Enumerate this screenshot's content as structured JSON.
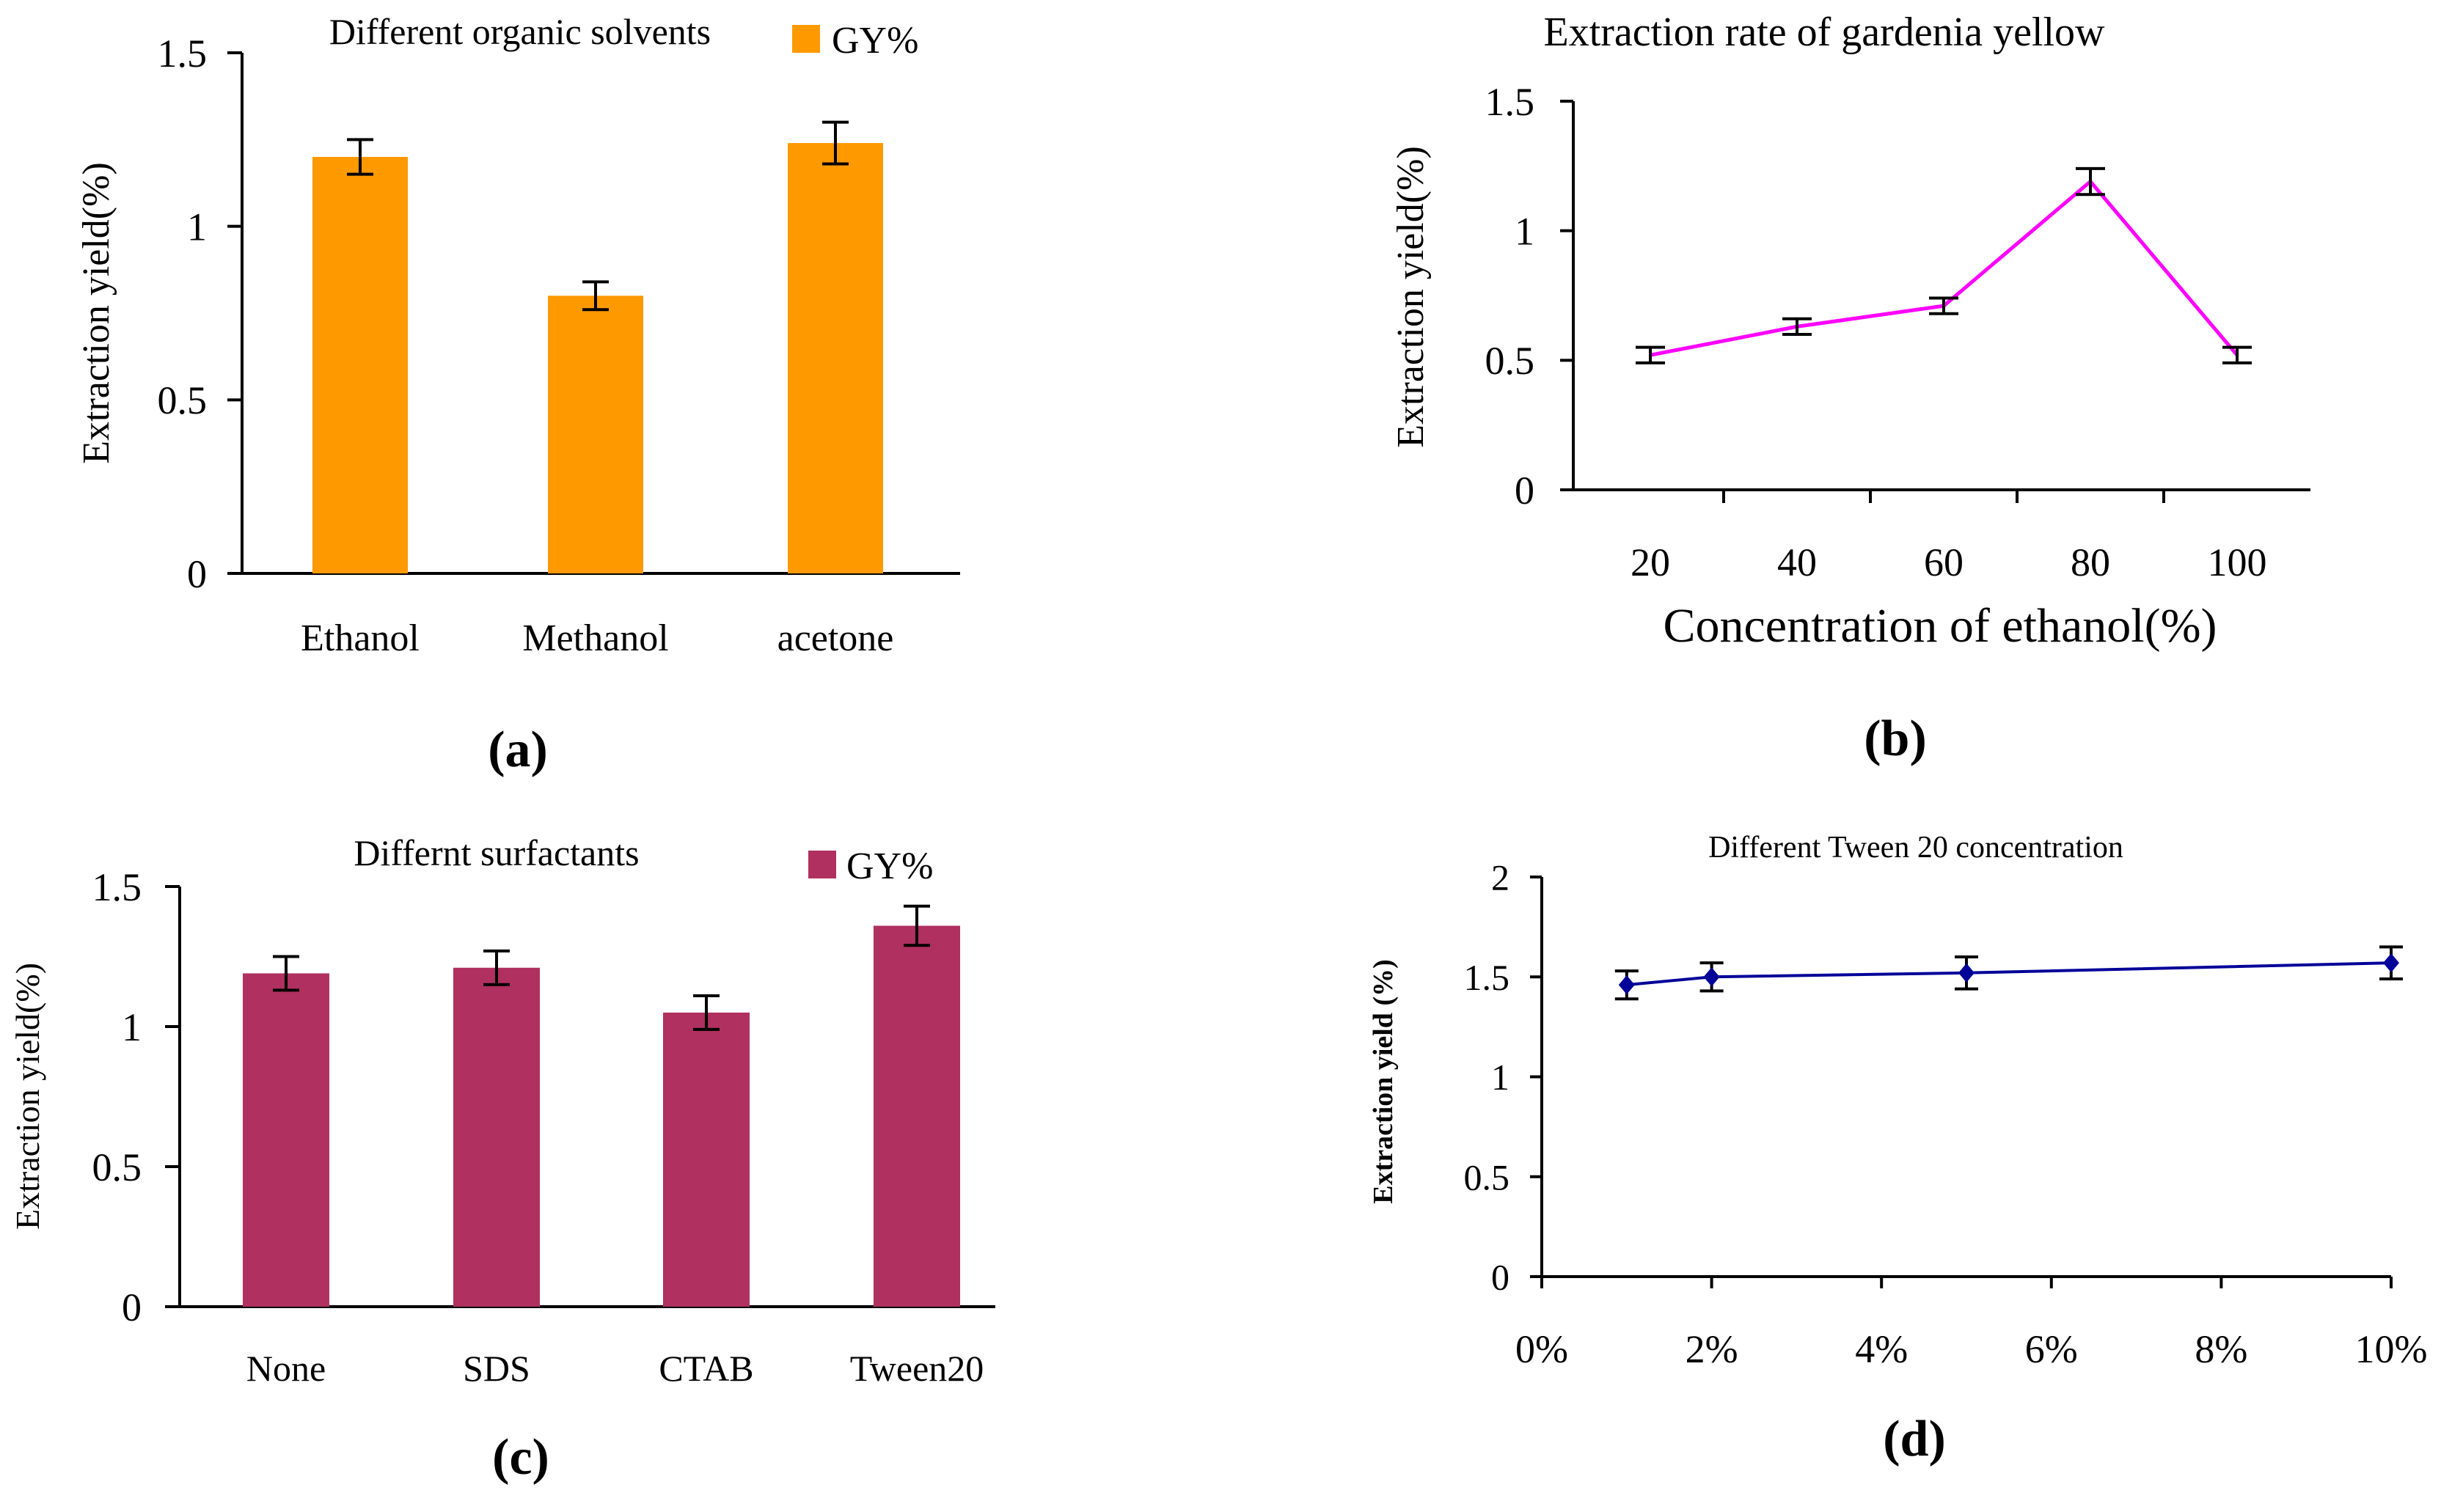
{
  "figure": {
    "panel_labels": {
      "a": "(a)",
      "b": "(b)",
      "c": "(c)",
      "d": "(d)"
    }
  },
  "chart_data": [
    {
      "id": "a",
      "type": "bar",
      "title": "Different organic solvents",
      "legend": "GY%",
      "legend_position": "top-right",
      "ylabel": "Extraction yield(%)",
      "xlabel": "",
      "categories": [
        "Ethanol",
        "Methanol",
        "acetone"
      ],
      "values": [
        1.2,
        0.8,
        1.24
      ],
      "errors": [
        0.05,
        0.04,
        0.06
      ],
      "ylim": [
        0,
        1.5
      ],
      "yticks": [
        0,
        0.5,
        1,
        1.5
      ],
      "ytick_labels": [
        "0",
        "0.5",
        "1",
        "1.5"
      ],
      "color": "#FF9900"
    },
    {
      "id": "b",
      "type": "line",
      "title": "Extraction rate of gardenia yellow",
      "xlabel": "Concentration of ethanol(%)",
      "ylabel": "Extraction yield(%)",
      "categories": [
        "20",
        "40",
        "60",
        "80",
        "100"
      ],
      "values": [
        0.52,
        0.63,
        0.71,
        1.19,
        0.52
      ],
      "errors": [
        0.03,
        0.03,
        0.03,
        0.05,
        0.03
      ],
      "ylim": [
        0,
        1.5
      ],
      "yticks": [
        0,
        0.5,
        1,
        1.5
      ],
      "ytick_labels": [
        "0",
        "0.5",
        "1",
        "1.5"
      ],
      "color": "#FF00FF"
    },
    {
      "id": "c",
      "type": "bar",
      "title": "Differnt surfactants",
      "legend": "GY%",
      "legend_position": "top-right",
      "ylabel": "Extraction yield(%)",
      "xlabel": "",
      "categories": [
        "None",
        "SDS",
        "CTAB",
        "Tween20"
      ],
      "values": [
        1.19,
        1.21,
        1.05,
        1.36
      ],
      "errors": [
        0.06,
        0.06,
        0.06,
        0.07
      ],
      "ylim": [
        0,
        1.5
      ],
      "yticks": [
        0,
        0.5,
        1,
        1.5
      ],
      "ytick_labels": [
        "0",
        "0.5",
        "1",
        "1.5"
      ],
      "color": "#B03060"
    },
    {
      "id": "d",
      "type": "line",
      "title": "Different Tween 20 concentration",
      "xlabel": "",
      "ylabel": "Extraction yield (%)",
      "x": [
        1,
        2,
        5,
        10
      ],
      "values": [
        1.46,
        1.5,
        1.52,
        1.57
      ],
      "errors": [
        0.07,
        0.07,
        0.08,
        0.08
      ],
      "xlim": [
        0,
        10
      ],
      "xticks": [
        0,
        2,
        4,
        6,
        8,
        10
      ],
      "xtick_labels": [
        "0%",
        "2%",
        "4%",
        "6%",
        "8%",
        "10%"
      ],
      "ylim": [
        0,
        2
      ],
      "yticks": [
        0,
        0.5,
        1,
        1.5,
        2
      ],
      "ytick_labels": [
        "0",
        "0.5",
        "1",
        "1.5",
        "2"
      ],
      "color": "#000099"
    }
  ]
}
